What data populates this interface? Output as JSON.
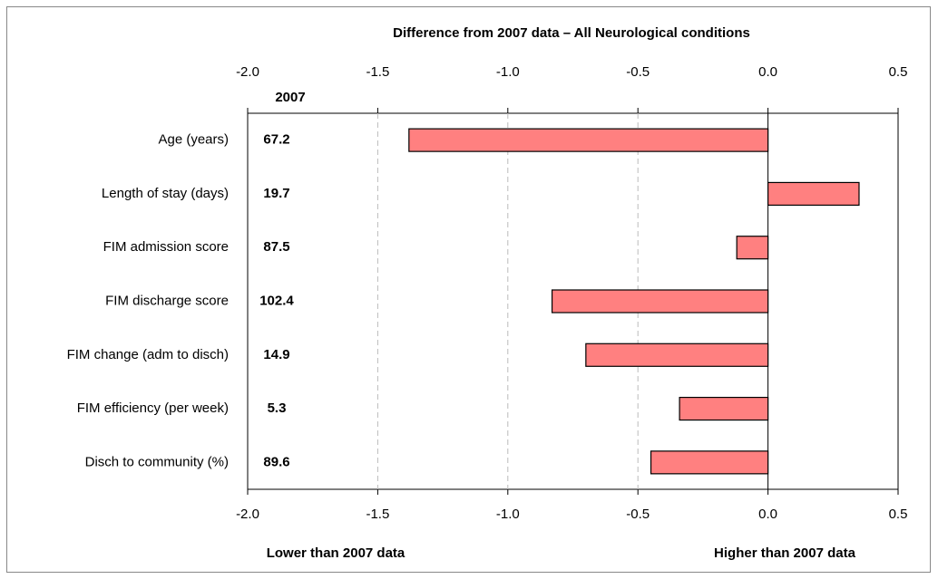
{
  "chart_data": {
    "type": "hbar",
    "title": "Difference from 2007 data – All Neurological conditions",
    "categories": [
      "Age (years)",
      "Length of stay (days)",
      "FIM admission score",
      "FIM discharge score",
      "FIM change (adm to disch)",
      "FIM efficiency (per week)",
      "Disch to community (%)"
    ],
    "values": [
      -1.38,
      0.35,
      -0.12,
      -0.83,
      -0.7,
      -0.34,
      -0.45
    ],
    "color": "#ff8080",
    "baseline_header": "2007",
    "baseline_values": [
      67.2,
      19.7,
      87.5,
      102.4,
      14.9,
      5.3,
      89.6
    ],
    "xlim": [
      -2.0,
      0.5
    ],
    "xticks": [
      {
        "value": -2.0,
        "label": "-2.0"
      },
      {
        "value": -1.5,
        "label": "-1.5"
      },
      {
        "value": -1.0,
        "label": "-1.0"
      },
      {
        "value": -0.5,
        "label": "-0.5"
      },
      {
        "value": 0,
        "label": "0.0"
      },
      {
        "value": 0.5,
        "label": "0.5"
      }
    ],
    "grid": true,
    "annotations": [
      "Lower than 2007 data",
      "Higher than 2007 data"
    ]
  }
}
